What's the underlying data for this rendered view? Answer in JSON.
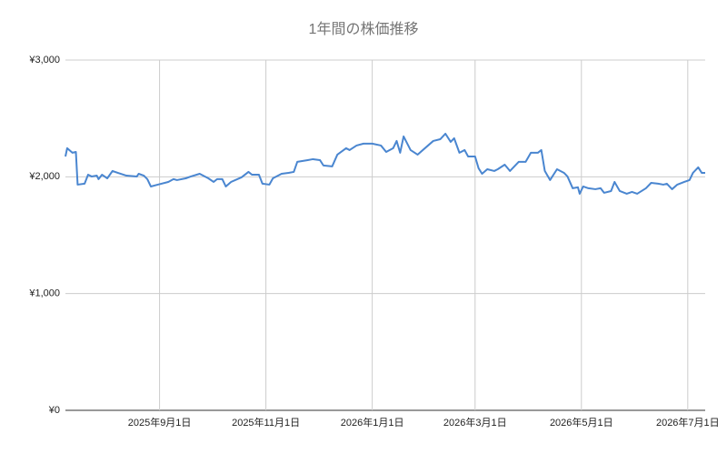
{
  "chart_data": {
    "type": "line",
    "title": "1年間の株価推移",
    "color": "#4a86d0",
    "grid": true,
    "x": [
      "2025-07-09",
      "2025-07-10",
      "2025-07-13",
      "2025-07-15",
      "2025-07-16",
      "2025-07-20",
      "2025-07-22",
      "2025-07-24",
      "2025-07-27",
      "2025-07-28",
      "2025-07-30",
      "2025-08-02",
      "2025-08-05",
      "2025-08-08",
      "2025-08-13",
      "2025-08-19",
      "2025-08-20",
      "2025-08-23",
      "2025-08-25",
      "2025-08-27",
      "2025-08-31",
      "2025-09-06",
      "2025-09-09",
      "2025-09-11",
      "2025-09-16",
      "2025-09-19",
      "2025-09-24",
      "2025-09-29",
      "2025-10-02",
      "2025-10-04",
      "2025-10-07",
      "2025-10-09",
      "2025-10-12",
      "2025-10-18",
      "2025-10-22",
      "2025-10-24",
      "2025-10-28",
      "2025-10-30",
      "2025-11-03",
      "2025-11-05",
      "2025-11-10",
      "2025-11-14",
      "2025-11-17",
      "2025-11-19",
      "2025-11-25",
      "2025-11-28",
      "2025-12-02",
      "2025-12-04",
      "2025-12-09",
      "2025-12-12",
      "2025-12-17",
      "2025-12-19",
      "2025-12-23",
      "2025-12-27",
      "2026-01-01",
      "2026-01-06",
      "2026-01-09",
      "2026-01-13",
      "2026-01-15",
      "2026-01-17",
      "2026-01-19",
      "2026-01-23",
      "2026-01-27",
      "2026-02-02",
      "2026-02-05",
      "2026-02-09",
      "2026-02-12",
      "2026-02-15",
      "2026-02-17",
      "2026-02-20",
      "2026-02-23",
      "2026-02-25",
      "2026-03-01",
      "2026-03-03",
      "2026-03-05",
      "2026-03-08",
      "2026-03-12",
      "2026-03-14",
      "2026-03-18",
      "2026-03-21",
      "2026-03-26",
      "2026-03-30",
      "2026-04-02",
      "2026-04-06",
      "2026-04-08",
      "2026-04-10",
      "2026-04-13",
      "2026-04-17",
      "2026-04-21",
      "2026-04-23",
      "2026-04-26",
      "2026-04-29",
      "2026-04-30",
      "2026-05-02",
      "2026-05-05",
      "2026-05-09",
      "2026-05-12",
      "2026-05-14",
      "2026-05-18",
      "2026-05-20",
      "2026-05-23",
      "2026-05-27",
      "2026-05-30",
      "2026-06-02",
      "2026-06-07",
      "2026-06-10",
      "2026-06-14",
      "2026-06-17",
      "2026-06-19",
      "2026-06-22",
      "2026-06-25",
      "2026-06-29",
      "2026-07-02",
      "2026-07-04",
      "2026-07-07",
      "2026-07-09",
      "2026-07-11"
    ],
    "values": [
      2174,
      2245,
      2206,
      2213,
      1933,
      1941,
      2018,
      2003,
      2010,
      1980,
      2018,
      1987,
      2050,
      2034,
      2010,
      2003,
      2026,
      2010,
      1980,
      1917,
      1933,
      1956,
      1980,
      1972,
      1987,
      2003,
      2026,
      1987,
      1956,
      1980,
      1980,
      1917,
      1956,
      1995,
      2042,
      2018,
      2018,
      1941,
      1933,
      1987,
      2026,
      2034,
      2042,
      2128,
      2143,
      2151,
      2143,
      2097,
      2089,
      2190,
      2245,
      2229,
      2268,
      2284,
      2284,
      2268,
      2213,
      2245,
      2307,
      2206,
      2346,
      2229,
      2190,
      2268,
      2307,
      2322,
      2369,
      2299,
      2330,
      2206,
      2229,
      2174,
      2174,
      2073,
      2026,
      2065,
      2050,
      2065,
      2104,
      2050,
      2128,
      2128,
      2206,
      2206,
      2229,
      2050,
      1972,
      2065,
      2034,
      2003,
      1902,
      1910,
      1855,
      1917,
      1902,
      1894,
      1902,
      1863,
      1878,
      1956,
      1878,
      1855,
      1871,
      1855,
      1902,
      1948,
      1941,
      1933,
      1941,
      1894,
      1933,
      1956,
      1972,
      2034,
      2081,
      2034,
      2034
    ],
    "xlim": [
      "2025-07-09",
      "2026-07-11"
    ],
    "xticks": [
      {
        "value": "2025-09-01",
        "label": "2025年9月1日"
      },
      {
        "value": "2025-11-01",
        "label": "2025年11月1日"
      },
      {
        "value": "2026-01-01",
        "label": "2026年1月1日"
      },
      {
        "value": "2026-03-01",
        "label": "2026年3月1日"
      },
      {
        "value": "2026-05-01",
        "label": "2026年5月1日"
      },
      {
        "value": "2026-07-01",
        "label": "2026年7月1日"
      }
    ],
    "ylim": [
      0,
      3000
    ],
    "yticks": [
      {
        "value": 0,
        "label": "¥0"
      },
      {
        "value": 1000,
        "label": "¥1,000"
      },
      {
        "value": 2000,
        "label": "¥2,000"
      },
      {
        "value": 3000,
        "label": "¥3,000"
      }
    ]
  }
}
